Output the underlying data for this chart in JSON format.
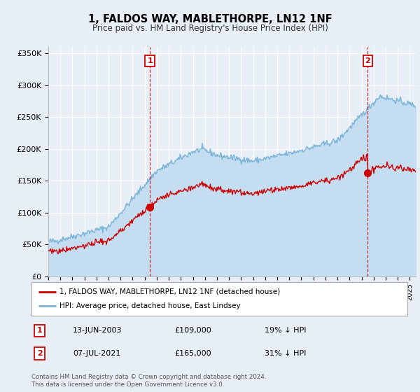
{
  "title": "1, FALDOS WAY, MABLETHORPE, LN12 1NF",
  "subtitle": "Price paid vs. HM Land Registry's House Price Index (HPI)",
  "ylim": [
    0,
    360000
  ],
  "yticks": [
    0,
    50000,
    100000,
    150000,
    200000,
    250000,
    300000,
    350000
  ],
  "ytick_labels": [
    "£0",
    "£50K",
    "£100K",
    "£150K",
    "£200K",
    "£250K",
    "£300K",
    "£350K"
  ],
  "background_color": "#e8eef5",
  "plot_bg_color": "#e8eef5",
  "hpi_color": "#7ab4d8",
  "hpi_fill_color": "#c5ddf0",
  "price_color": "#cc0000",
  "transaction1_date": "13-JUN-2003",
  "transaction1_price": 109000,
  "transaction1_label": "19% ↓ HPI",
  "transaction1_x": 2003.45,
  "transaction2_date": "07-JUL-2021",
  "transaction2_price": 165000,
  "transaction2_label": "31% ↓ HPI",
  "transaction2_x": 2021.52,
  "legend_label_price": "1, FALDOS WAY, MABLETHORPE, LN12 1NF (detached house)",
  "legend_label_hpi": "HPI: Average price, detached house, East Lindsey",
  "footer_line1": "Contains HM Land Registry data © Crown copyright and database right 2024.",
  "footer_line2": "This data is licensed under the Open Government Licence v3.0.",
  "xmin": 1995,
  "xmax": 2025.5
}
